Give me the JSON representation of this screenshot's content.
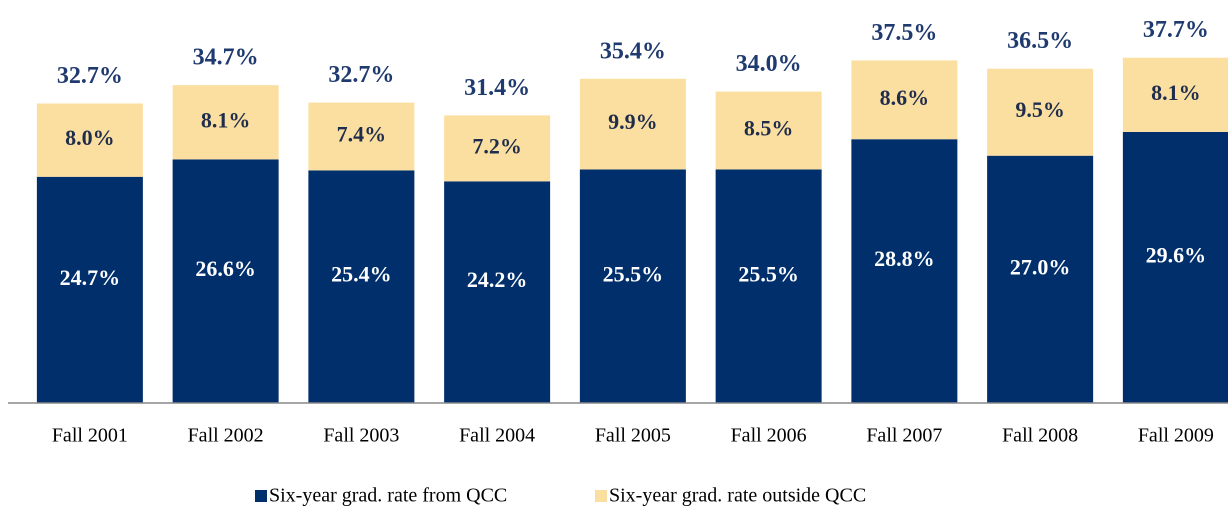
{
  "chart_data": {
    "type": "stacked_bar",
    "categories": [
      "Fall 2001",
      "Fall 2002",
      "Fall 2003",
      "Fall 2004",
      "Fall 2005",
      "Fall 2006",
      "Fall 2007",
      "Fall 2008",
      "Fall 2009"
    ],
    "series": [
      {
        "name": "Six-year grad. rate from QCC",
        "color": "#002f6c",
        "values": [
          24.7,
          26.6,
          25.4,
          24.2,
          25.5,
          25.5,
          28.8,
          27.0,
          29.6
        ],
        "value_labels": [
          "24.7%",
          "26.6%",
          "25.4%",
          "24.2%",
          "25.5%",
          "25.5%",
          "28.8%",
          "27.0%",
          "29.6%"
        ]
      },
      {
        "name": "Six-year grad. rate outside QCC",
        "color": "#fbdfa0",
        "values": [
          8.0,
          8.1,
          7.4,
          7.2,
          9.9,
          8.5,
          8.6,
          9.5,
          8.1
        ],
        "value_labels": [
          "8.0%",
          "8.1%",
          "7.4%",
          "7.2%",
          "9.9%",
          "8.5%",
          "8.6%",
          "9.5%",
          "8.1%"
        ]
      }
    ],
    "totals": [
      32.7,
      34.7,
      32.7,
      31.4,
      35.4,
      34.0,
      37.5,
      36.5,
      37.7
    ],
    "total_labels": [
      "32.7%",
      "34.7%",
      "32.7%",
      "31.4%",
      "35.4%",
      "34.0%",
      "37.5%",
      "36.5%",
      "37.7%"
    ],
    "ylim": [
      0,
      44
    ],
    "legend": "bottom"
  }
}
